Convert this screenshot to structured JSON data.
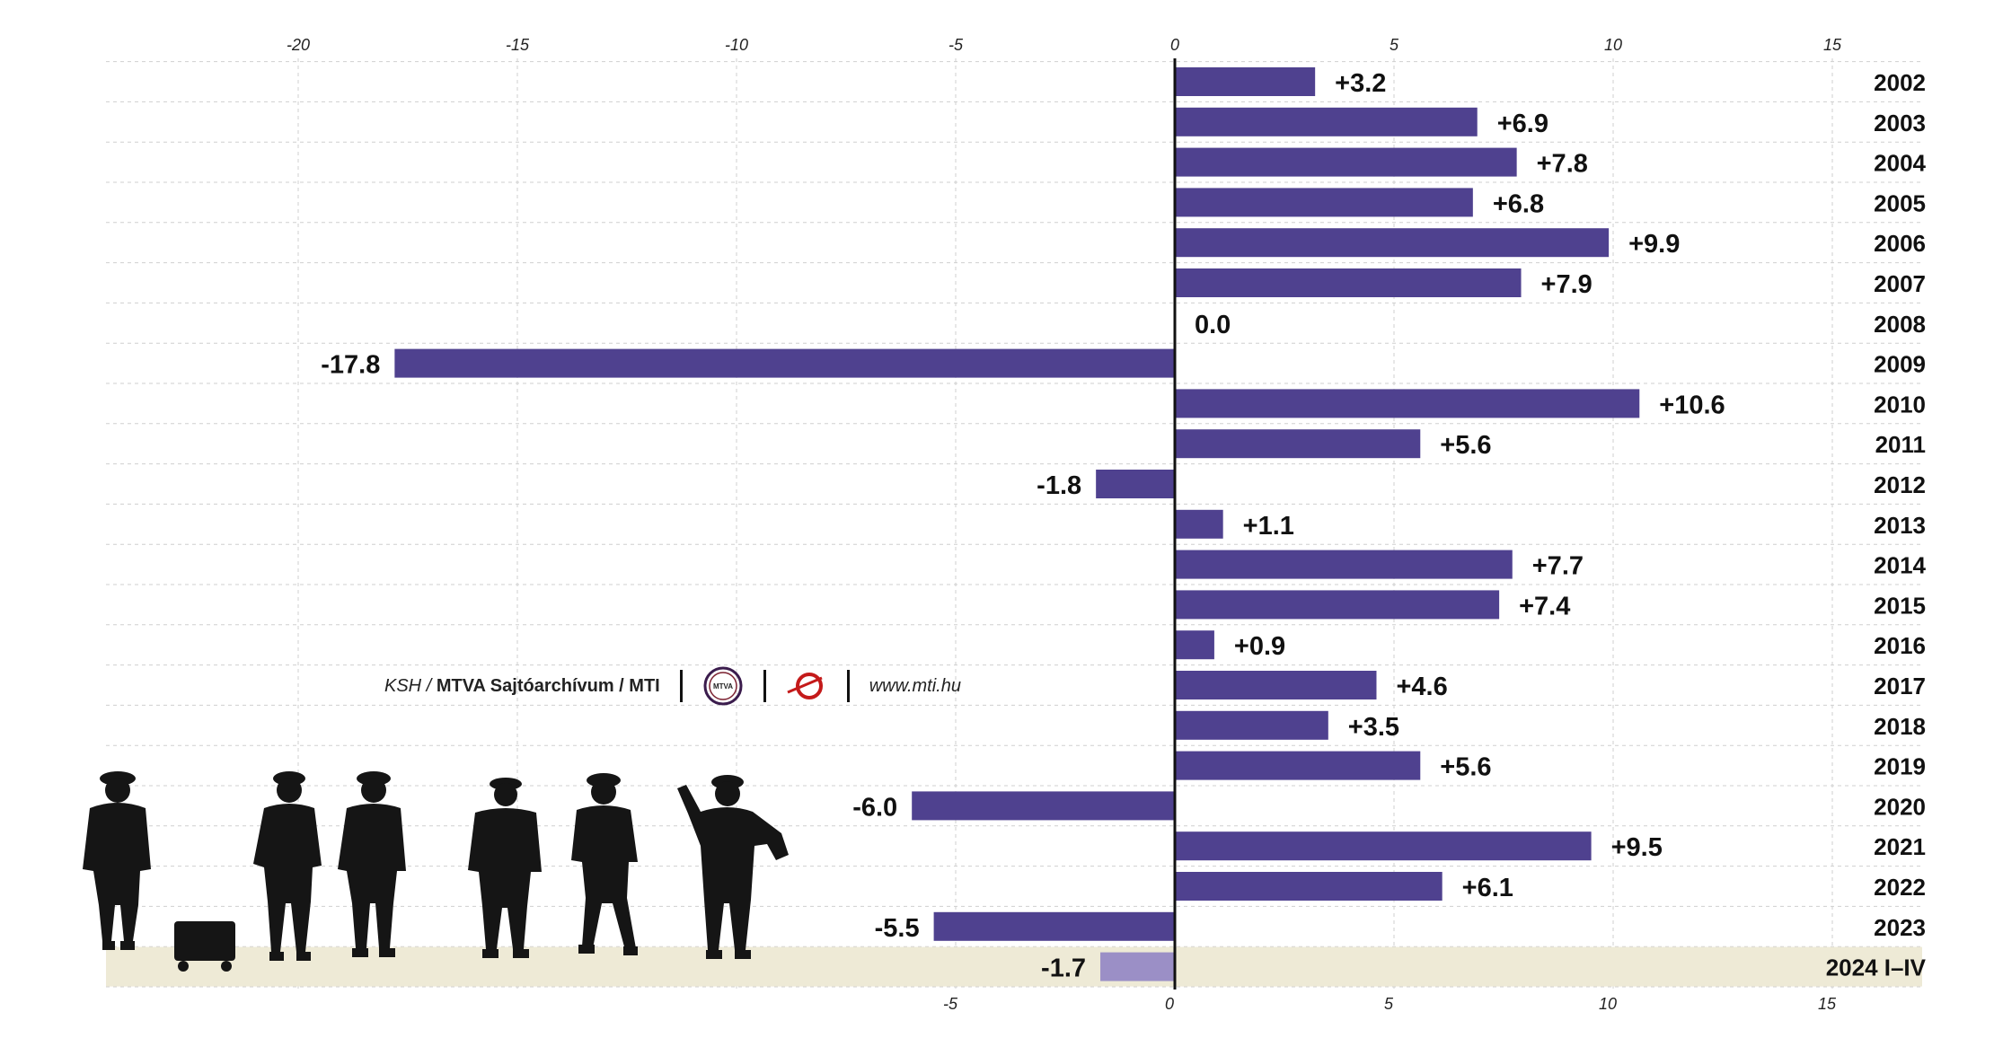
{
  "chart_data": {
    "type": "bar",
    "orientation": "horizontal",
    "categories": [
      "2002",
      "2003",
      "2004",
      "2005",
      "2006",
      "2007",
      "2008",
      "2009",
      "2010",
      "2011",
      "2012",
      "2013",
      "2014",
      "2015",
      "2016",
      "2017",
      "2018",
      "2019",
      "2020",
      "2021",
      "2022",
      "2023",
      "2024 I–IV"
    ],
    "value_labels": [
      "+3.2",
      "+6.9",
      "+7.8",
      "+6.8",
      "+9.9",
      "+7.9",
      "0.0",
      "-17.8",
      "+10.6",
      "+5.6",
      "-1.8",
      "+1.1",
      "+7.7",
      "+7.4",
      "+0.9",
      "+4.6",
      "+3.5",
      "+5.6",
      "-6.0",
      "+9.5",
      "+6.1",
      "-5.5",
      "-1.7"
    ],
    "values": [
      3.2,
      6.9,
      7.8,
      6.8,
      9.9,
      7.9,
      0.0,
      -17.8,
      10.6,
      5.6,
      -1.8,
      1.1,
      7.7,
      7.4,
      0.9,
      4.6,
      3.5,
      5.6,
      -6.0,
      9.5,
      6.1,
      -5.5,
      -1.7
    ],
    "highlight_last": true,
    "xlim": [
      -24.4,
      17
    ],
    "top_ticks": [
      "-20",
      "-15",
      "-10",
      "-5",
      "0",
      "5",
      "10",
      "15"
    ],
    "top_tick_values": [
      -20,
      -15,
      -10,
      -5,
      0,
      5,
      10,
      15
    ],
    "bottom_ticks": [
      "-5",
      "0",
      "5",
      "10",
      "15"
    ],
    "bottom_tick_values": [
      -5,
      0,
      5,
      10,
      15
    ],
    "grid": true,
    "bar_color": "#4f418f",
    "highlight_bar_color": "#9b8fc6",
    "highlight_band_color": "#eeead6"
  },
  "credits": {
    "source": "KSH /",
    "archive": "MTVA Sajtóarchívum / MTI",
    "logo_text": "MTVA",
    "url": "www.mti.hu"
  }
}
